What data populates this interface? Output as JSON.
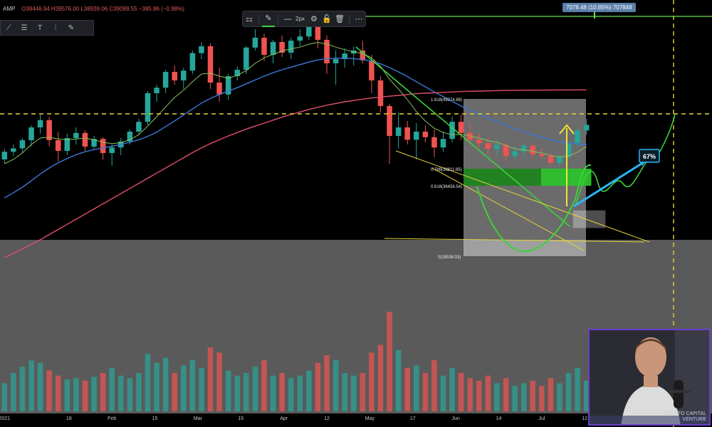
{
  "header": {
    "prefix": "AMP",
    "ohlc": "O39446.94 H39576.00 L38939.06 C39089.55 −385.86 (−0.98%)"
  },
  "toolbar": {
    "line_width_label": "2px",
    "icons": [
      "template-icon",
      "pencil-icon",
      "line-style-icon",
      "settings-icon",
      "lock-icon",
      "trash-icon"
    ]
  },
  "measure_badge": "7078.48 (10.85%) 707848",
  "fib_labels": [
    "1.618(49274.88)",
    "0.786(38811.85)",
    "0.618(36458.54)",
    "0(28538.03)"
  ],
  "projection_label": "67%",
  "webcam": {
    "line1": "CRYPTO CAPITAL",
    "line2": "VENTURE"
  },
  "colors": {
    "up": "#26a69a",
    "down": "#ef5350",
    "ma_fast": "#8bbf5a",
    "ma_mid": "#3b78d8",
    "ma_slow": "#e0506a",
    "yellow_line": "#e6d13a",
    "green_zone": "#2a9d2a",
    "cyan_arrow": "#29b6f6",
    "projection": "#6ee04a"
  },
  "chart_data": {
    "type": "candlestick",
    "x_tick_labels": [
      "2021",
      "18",
      "Feb",
      "15",
      "Mar",
      "15",
      "Apr",
      "12",
      "May",
      "17",
      "Jun",
      "14",
      "Jul",
      "12"
    ],
    "x_ticks": [
      0,
      3,
      5,
      7,
      9,
      11,
      13,
      15,
      17,
      19,
      21,
      23,
      25,
      27
    ],
    "horizontal_levels": [
      49274.88,
      38811.85,
      36458.54,
      28538.03
    ],
    "candles": [
      [
        31000,
        33500,
        30000,
        32800
      ],
      [
        32800,
        34500,
        31800,
        33600
      ],
      [
        33600,
        36000,
        32500,
        35500
      ],
      [
        35500,
        39000,
        34000,
        38500
      ],
      [
        38500,
        41500,
        37000,
        40200
      ],
      [
        40200,
        41000,
        34000,
        35500
      ],
      [
        35500,
        37500,
        30500,
        33000
      ],
      [
        33000,
        37000,
        32000,
        36000
      ],
      [
        36000,
        38500,
        34500,
        37200
      ],
      [
        37200,
        37800,
        33000,
        34000
      ],
      [
        34000,
        36500,
        33500,
        35800
      ],
      [
        35800,
        36200,
        31000,
        32500
      ],
      [
        32500,
        34500,
        29500,
        33800
      ],
      [
        33800,
        36000,
        32000,
        35200
      ],
      [
        35200,
        38000,
        34500,
        37500
      ],
      [
        37500,
        40500,
        36800,
        39800
      ],
      [
        39800,
        47000,
        39000,
        46500
      ],
      [
        46500,
        48500,
        44500,
        47800
      ],
      [
        47800,
        52000,
        46500,
        51500
      ],
      [
        51500,
        53000,
        48500,
        49500
      ],
      [
        49500,
        52500,
        47500,
        51800
      ],
      [
        51800,
        56500,
        51000,
        55900
      ],
      [
        55900,
        58500,
        54500,
        57500
      ],
      [
        57500,
        58200,
        47500,
        49000
      ],
      [
        49000,
        52500,
        44500,
        46200
      ],
      [
        46200,
        51000,
        45000,
        50500
      ],
      [
        50500,
        52800,
        49500,
        52000
      ],
      [
        52000,
        57500,
        51000,
        57200
      ],
      [
        57200,
        61500,
        56500,
        59500
      ],
      [
        59500,
        60500,
        54000,
        55500
      ],
      [
        55500,
        59000,
        53500,
        58500
      ],
      [
        58500,
        60000,
        55000,
        56000
      ],
      [
        56000,
        59500,
        54500,
        58800
      ],
      [
        58800,
        61500,
        57500,
        59800
      ],
      [
        59800,
        64800,
        59000,
        63500
      ],
      [
        63500,
        64500,
        57000,
        59000
      ],
      [
        59000,
        60000,
        51000,
        53500
      ],
      [
        53500,
        56500,
        48500,
        54500
      ],
      [
        54500,
        57000,
        52500,
        55800
      ],
      [
        55800,
        57500,
        53000,
        56500
      ],
      [
        56500,
        58800,
        53500,
        54200
      ],
      [
        54200,
        55500,
        46500,
        49500
      ],
      [
        49500,
        50500,
        42000,
        43500
      ],
      [
        43500,
        44000,
        30000,
        36500
      ],
      [
        36500,
        42000,
        33500,
        38500
      ],
      [
        38500,
        40000,
        34500,
        35600
      ],
      [
        35600,
        39500,
        31000,
        37500
      ],
      [
        37500,
        39000,
        35000,
        36200
      ],
      [
        36200,
        38000,
        31500,
        33800
      ],
      [
        33800,
        37500,
        32800,
        35800
      ],
      [
        35800,
        41000,
        35000,
        39800
      ],
      [
        39800,
        41500,
        35500,
        37200
      ],
      [
        37200,
        39500,
        34800,
        35600
      ],
      [
        35600,
        37000,
        33500,
        34800
      ],
      [
        34800,
        36000,
        32000,
        33500
      ],
      [
        33500,
        35500,
        32000,
        34400
      ],
      [
        34400,
        35000,
        30500,
        31800
      ],
      [
        31800,
        34000,
        31000,
        32900
      ],
      [
        32900,
        34800,
        31500,
        34200
      ],
      [
        34200,
        35000,
        31500,
        32200
      ],
      [
        32200,
        33500,
        31200,
        31800
      ],
      [
        31800,
        32500,
        29500,
        30200
      ],
      [
        30200,
        32000,
        29300,
        31600
      ],
      [
        31600,
        35000,
        31200,
        34800
      ],
      [
        34800,
        38000,
        34200,
        37800
      ],
      [
        37800,
        40500,
        36800,
        39100
      ]
    ],
    "volumes": [
      22,
      30,
      35,
      40,
      38,
      32,
      28,
      25,
      26,
      24,
      27,
      30,
      34,
      28,
      26,
      30,
      45,
      38,
      42,
      30,
      36,
      40,
      34,
      50,
      46,
      32,
      28,
      30,
      35,
      40,
      28,
      30,
      26,
      28,
      32,
      38,
      44,
      40,
      30,
      28,
      30,
      46,
      52,
      78,
      48,
      34,
      36,
      30,
      40,
      28,
      34,
      30,
      26,
      24,
      28,
      22,
      26,
      20,
      22,
      24,
      20,
      26,
      22,
      30,
      34,
      24
    ],
    "ma_fast": [
      30000,
      31000,
      32500,
      34500,
      36000,
      36200,
      35800,
      35600,
      35800,
      36000,
      35600,
      35000,
      34700,
      34900,
      35600,
      36800,
      38800,
      41000,
      43300,
      45500,
      47200,
      49200,
      51000,
      51200,
      50500,
      50000,
      50700,
      51800,
      53500,
      54800,
      55600,
      56400,
      56900,
      57300,
      58000,
      58400,
      58000,
      57300,
      56700,
      56200,
      55800,
      54800,
      52800,
      49800,
      47500,
      45000,
      42200,
      40000,
      38300,
      37300,
      36800,
      36900,
      36500,
      36000,
      35400,
      35000,
      34300,
      33500,
      33200,
      32900,
      32500,
      31900,
      31600,
      31800,
      32700,
      34000
    ],
    "ma_mid": [
      22000,
      23200,
      24500,
      26000,
      27600,
      29000,
      30200,
      31200,
      32100,
      32800,
      33300,
      33700,
      34100,
      34500,
      35000,
      35600,
      36400,
      37400,
      38700,
      40000,
      41400,
      42800,
      44200,
      45300,
      46200,
      47000,
      47800,
      48700,
      49600,
      50500,
      51300,
      52000,
      52600,
      53200,
      53800,
      54300,
      54600,
      54700,
      54700,
      54600,
      54400,
      54000,
      53400,
      52500,
      51500,
      50400,
      49200,
      48000,
      46800,
      45700,
      44600,
      43500,
      42500,
      41600,
      40700,
      39900,
      39000,
      38200,
      37500,
      36800,
      36200,
      35600,
      35100,
      34800,
      34600,
      34500
    ],
    "ma_slow": [
      8000,
      9000,
      10000,
      11100,
      12200,
      13400,
      14600,
      15800,
      17000,
      18200,
      19400,
      20600,
      21800,
      23000,
      24200,
      25400,
      26600,
      27800,
      29000,
      30200,
      31400,
      32600,
      33700,
      34700,
      35600,
      36500,
      37300,
      38100,
      38800,
      39500,
      40200,
      40900,
      41500,
      42100,
      42700,
      43200,
      43700,
      44100,
      44500,
      44800,
      45100,
      45400,
      45600,
      45800,
      46000,
      46200,
      46400,
      46500,
      46600,
      46700,
      46800,
      46900,
      46950,
      47000,
      47050,
      47100,
      47150,
      47180,
      47200,
      47220,
      47240,
      47250,
      47260,
      47270,
      47280,
      47290
    ],
    "ylim": [
      0,
      65000
    ]
  }
}
